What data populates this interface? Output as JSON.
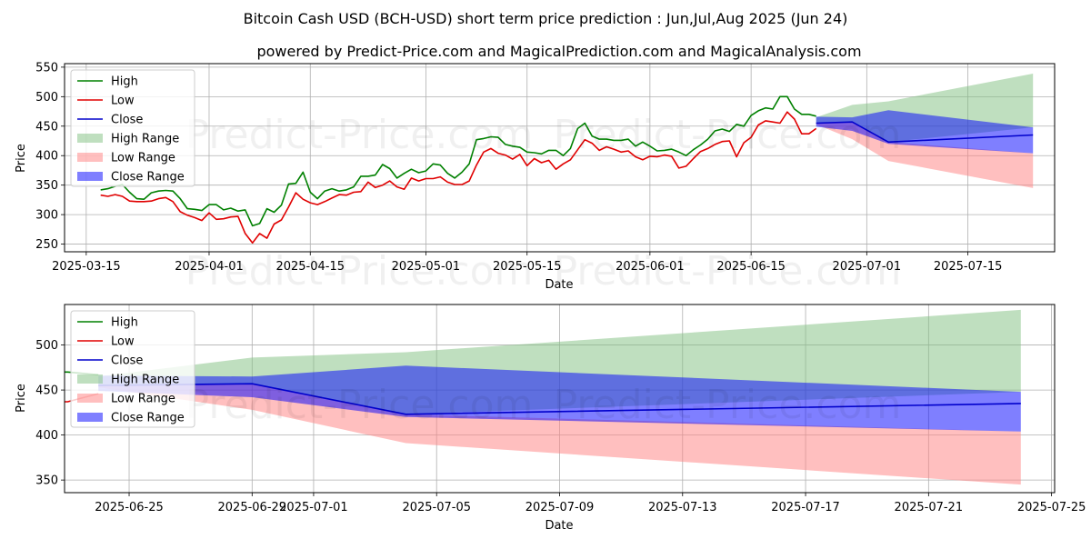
{
  "title": "Bitcoin Cash USD (BCH-USD) short term price prediction : Jun,Jul,Aug 2025 (Jun 24)",
  "subtitle": "powered by Predict-Price.com and MagicalPrediction.com and MagicalAnalysis.com",
  "watermark": "Predict-Price.com",
  "colors": {
    "high": "#008000",
    "low": "#e00000",
    "close": "#0000cc",
    "high_range": "#7fc07f",
    "low_range": "#ff8080",
    "close_range": "#0000ff"
  },
  "chart_data": [
    {
      "type": "line",
      "xlabel": "Date",
      "ylabel": "Price",
      "xlim": [
        "2025-03-12",
        "2025-07-27"
      ],
      "ylim": [
        237,
        556
      ],
      "xticks": [
        "2025-03-15",
        "2025-04-01",
        "2025-04-15",
        "2025-05-01",
        "2025-05-15",
        "2025-06-01",
        "2025-06-15",
        "2025-07-01",
        "2025-07-15"
      ],
      "yticks": [
        250,
        300,
        350,
        400,
        450,
        500,
        550
      ],
      "grid": true,
      "legend": "top-left",
      "legend_entries": [
        "High",
        "Low",
        "Close",
        "High Range",
        "Low Range",
        "Close Range"
      ],
      "history": {
        "start": "2025-03-17",
        "high": [
          342,
          344,
          348,
          351,
          338,
          327,
          326,
          337,
          340,
          341,
          340,
          327,
          310,
          309,
          307,
          317,
          317,
          308,
          311,
          306,
          308,
          281,
          285,
          310,
          304,
          316,
          352,
          353,
          372,
          338,
          327,
          340,
          344,
          340,
          342,
          347,
          365,
          365,
          367,
          385,
          378,
          362,
          370,
          377,
          371,
          374,
          386,
          384,
          370,
          362,
          372,
          386,
          427,
          429,
          432,
          431,
          419,
          416,
          414,
          406,
          405,
          403,
          409,
          409,
          400,
          412,
          446,
          455,
          433,
          428,
          428,
          426,
          426,
          428,
          416,
          423,
          416,
          408,
          409,
          411,
          406,
          400,
          410,
          418,
          428,
          442,
          445,
          441,
          453,
          450,
          468,
          476,
          481,
          479,
          500,
          500,
          479,
          470,
          470,
          467
        ],
        "low": [
          333,
          331,
          334,
          331,
          323,
          322,
          322,
          323,
          327,
          329,
          322,
          305,
          299,
          295,
          290,
          303,
          292,
          293,
          296,
          297,
          268,
          252,
          268,
          260,
          284,
          291,
          313,
          337,
          326,
          320,
          317,
          322,
          328,
          334,
          333,
          338,
          339,
          355,
          346,
          350,
          357,
          347,
          343,
          362,
          357,
          361,
          361,
          364,
          355,
          351,
          351,
          357,
          384,
          406,
          412,
          404,
          401,
          394,
          402,
          383,
          395,
          388,
          392,
          377,
          386,
          393,
          410,
          427,
          421,
          409,
          415,
          411,
          406,
          408,
          398,
          393,
          399,
          398,
          401,
          399,
          379,
          382,
          395,
          407,
          412,
          419,
          424,
          425,
          398,
          422,
          431,
          452,
          459,
          457,
          455,
          474,
          462,
          437,
          437,
          446
        ]
      },
      "forecast": {
        "dates": [
          "2025-06-24",
          "2025-06-29",
          "2025-07-04",
          "2025-07-24"
        ],
        "close": [
          455,
          457,
          423,
          435
        ],
        "high_range_upper": [
          465,
          486,
          492,
          539
        ],
        "high_range_lower": [
          455,
          457,
          423,
          448
        ],
        "low_range_upper": [
          455,
          457,
          423,
          404
        ],
        "low_range_lower": [
          453,
          428,
          391,
          345
        ],
        "close_range_upper": [
          466,
          465,
          477,
          448
        ],
        "close_range_lower": [
          449,
          442,
          420,
          404
        ]
      }
    },
    {
      "type": "line",
      "xlabel": "Date",
      "ylabel": "Price",
      "xlim": [
        "2025-06-22.9",
        "2025-07-25.1"
      ],
      "ylim": [
        336,
        545
      ],
      "xticks": [
        "2025-06-25",
        "2025-06-29",
        "2025-07-01",
        "2025-07-05",
        "2025-07-09",
        "2025-07-13",
        "2025-07-17",
        "2025-07-21",
        "2025-07-25"
      ],
      "yticks": [
        350,
        400,
        450,
        500
      ],
      "grid": true,
      "legend": "top-left",
      "legend_entries": [
        "High",
        "Low",
        "Close",
        "High Range",
        "Low Range",
        "Close Range"
      ]
    }
  ]
}
